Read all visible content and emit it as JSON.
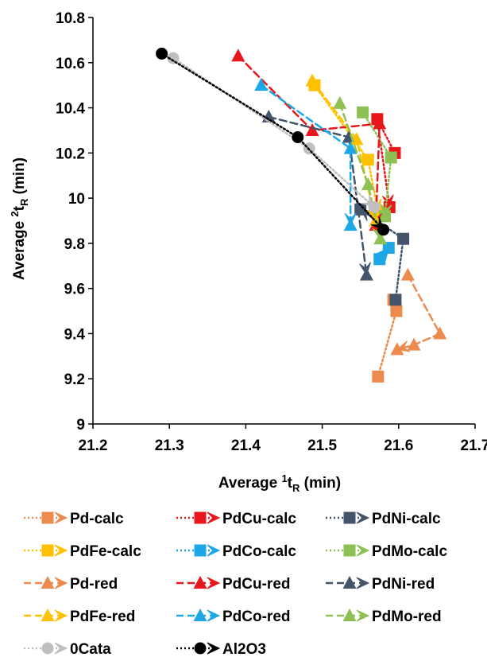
{
  "chart_data": {
    "type": "line",
    "xlabel": {
      "prefix": "Average ",
      "sup": "1",
      "var": "t",
      "sub": "R",
      "suffix": " (min)"
    },
    "ylabel": {
      "prefix": "Average ",
      "sup": "2",
      "var": "t",
      "sub": "R",
      "suffix": " (min)"
    },
    "xlim": [
      21.2,
      21.7
    ],
    "ylim": [
      9,
      10.8
    ],
    "xticks": [
      "21.2",
      "21.3",
      "21.4",
      "21.5",
      "21.6",
      "21.7"
    ],
    "yticks": [
      "9",
      "9.2",
      "9.4",
      "9.6",
      "9.8",
      "10",
      "10.2",
      "10.4",
      "10.6",
      "10.8"
    ],
    "legend_position": "bottom",
    "series": [
      {
        "name": "Pd-calc",
        "color": "#ED8B4F",
        "marker": "square",
        "line": "dotted",
        "points": [
          [
            21.573,
            9.21
          ],
          [
            21.597,
            9.5
          ],
          [
            21.593,
            9.55
          ]
        ]
      },
      {
        "name": "PdCu-calc",
        "color": "#E8171B",
        "marker": "square",
        "line": "dotted",
        "points": [
          [
            21.595,
            10.2
          ],
          [
            21.572,
            10.35
          ],
          [
            21.588,
            9.96
          ]
        ]
      },
      {
        "name": "PdNi-calc",
        "color": "#44546A",
        "marker": "square",
        "line": "dotted",
        "points": [
          [
            21.596,
            9.55
          ],
          [
            21.606,
            9.82
          ],
          [
            21.55,
            9.95
          ]
        ]
      },
      {
        "name": "PdFe-calc",
        "color": "#FFC000",
        "marker": "square",
        "line": "dotted",
        "points": [
          [
            21.49,
            10.5
          ],
          [
            21.56,
            10.17
          ],
          [
            21.573,
            9.94
          ]
        ]
      },
      {
        "name": "PdCo-calc",
        "color": "#1EA7E6",
        "marker": "square",
        "line": "dotted",
        "points": [
          [
            21.575,
            9.73
          ],
          [
            21.587,
            9.78
          ]
        ]
      },
      {
        "name": "PdMo-calc",
        "color": "#8DC153",
        "marker": "square",
        "line": "dotted",
        "points": [
          [
            21.553,
            10.38
          ],
          [
            21.59,
            10.18
          ],
          [
            21.582,
            9.92
          ]
        ]
      },
      {
        "name": "Pd-red",
        "color": "#ED8B4F",
        "marker": "triangle",
        "line": "dashed",
        "points": [
          [
            21.612,
            9.66
          ],
          [
            21.654,
            9.4
          ],
          [
            21.62,
            9.35
          ],
          [
            21.598,
            9.33
          ]
        ]
      },
      {
        "name": "PdCu-red",
        "color": "#E8171B",
        "marker": "triangle",
        "line": "dashed",
        "points": [
          [
            21.39,
            10.63
          ],
          [
            21.487,
            10.3
          ],
          [
            21.575,
            10.33
          ],
          [
            21.57,
            9.88
          ]
        ]
      },
      {
        "name": "PdNi-red",
        "color": "#44546A",
        "marker": "triangle",
        "line": "dashed",
        "points": [
          [
            21.43,
            10.36
          ],
          [
            21.535,
            10.27
          ],
          [
            21.558,
            9.66
          ]
        ]
      },
      {
        "name": "PdFe-red",
        "color": "#FFC000",
        "marker": "triangle",
        "line": "dashed",
        "points": [
          [
            21.487,
            10.52
          ],
          [
            21.545,
            10.26
          ],
          [
            21.57,
            9.9
          ]
        ]
      },
      {
        "name": "PdCo-red",
        "color": "#1EA7E6",
        "marker": "triangle",
        "line": "dashed",
        "points": [
          [
            21.42,
            10.5
          ],
          [
            21.537,
            10.22
          ],
          [
            21.537,
            9.88
          ]
        ]
      },
      {
        "name": "PdMo-red",
        "color": "#8DC153",
        "marker": "triangle",
        "line": "dashed",
        "points": [
          [
            21.523,
            10.42
          ],
          [
            21.56,
            10.06
          ],
          [
            21.576,
            9.82
          ]
        ]
      },
      {
        "name": "0Cata",
        "color": "#BFBFBF",
        "marker": "circle",
        "line": "dotted",
        "points": [
          [
            21.305,
            10.62
          ],
          [
            21.483,
            10.22
          ],
          [
            21.568,
            9.96
          ]
        ]
      },
      {
        "name": "Al2O3",
        "color": "#000000",
        "marker": "circle",
        "line": "dotted",
        "points": [
          [
            21.29,
            10.64
          ],
          [
            21.468,
            10.27
          ],
          [
            21.58,
            9.86
          ]
        ]
      }
    ]
  }
}
